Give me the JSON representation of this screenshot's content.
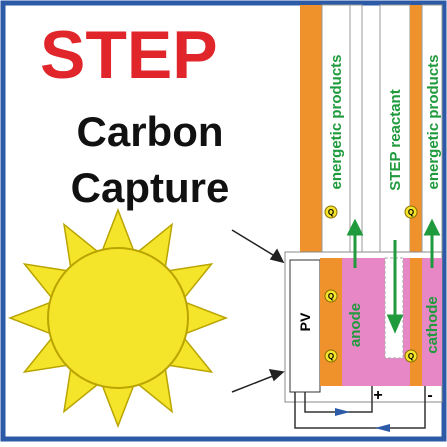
{
  "header": {
    "title": "STEP",
    "subtitle": [
      "Carbon",
      "Capture"
    ]
  },
  "tubes": [
    "energetic products",
    "STEP reactant",
    "energetic products"
  ],
  "cell": {
    "pv": "PV",
    "anode": "anode",
    "cathode": "cathode",
    "terminals": [
      "+",
      "-"
    ],
    "markers": [
      "Q",
      "Q",
      "Q",
      "Q",
      "Q"
    ]
  }
}
